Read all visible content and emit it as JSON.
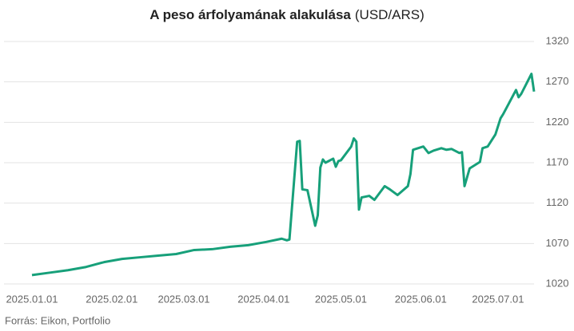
{
  "chart_data": {
    "type": "line",
    "title": "A peso árfolyamának alakulása",
    "title_unit": "(USD/ARS)",
    "source": "Forrás: Eikon, Portfolio",
    "x": [
      "2025.01.01",
      "2025.01.08",
      "2025.01.15",
      "2025.01.22",
      "2025.01.29",
      "2025.02.05",
      "2025.02.12",
      "2025.02.19",
      "2025.02.26",
      "2025.03.05",
      "2025.03.12",
      "2025.03.19",
      "2025.03.26",
      "2025.04.02",
      "2025.04.08",
      "2025.04.10",
      "2025.04.11",
      "2025.04.14",
      "2025.04.15",
      "2025.04.16",
      "2025.04.18",
      "2025.04.21",
      "2025.04.22",
      "2025.04.23",
      "2025.04.24",
      "2025.04.25",
      "2025.04.28",
      "2025.04.29",
      "2025.04.30",
      "2025.05.01",
      "2025.05.05",
      "2025.05.06",
      "2025.05.07",
      "2025.05.08",
      "2025.05.09",
      "2025.05.12",
      "2025.05.14",
      "2025.05.18",
      "2025.05.20",
      "2025.05.23",
      "2025.05.27",
      "2025.05.28",
      "2025.05.29",
      "2025.06.02",
      "2025.06.04",
      "2025.06.06",
      "2025.06.09",
      "2025.06.11",
      "2025.06.13",
      "2025.06.16",
      "2025.06.17",
      "2025.06.18",
      "2025.06.20",
      "2025.06.24",
      "2025.06.25",
      "2025.06.27",
      "2025.06.30",
      "2025.07.02",
      "2025.07.03",
      "2025.07.08",
      "2025.07.09",
      "2025.07.10",
      "2025.07.14",
      "2025.07.15"
    ],
    "series": [
      {
        "color": "#17a07a",
        "values": [
          1031,
          1034,
          1037,
          1041,
          1047,
          1051,
          1053,
          1055,
          1057,
          1062,
          1063,
          1066,
          1068,
          1072,
          1076,
          1074,
          1075,
          1196,
          1197,
          1137,
          1136,
          1092,
          1105,
          1164,
          1174,
          1170,
          1175,
          1165,
          1172,
          1173,
          1190,
          1200,
          1196,
          1112,
          1127,
          1129,
          1124,
          1141,
          1137,
          1130,
          1141,
          1156,
          1186,
          1190,
          1182,
          1185,
          1188,
          1186,
          1187,
          1182,
          1183,
          1141,
          1163,
          1171,
          1188,
          1190,
          1205,
          1225,
          1230,
          1260,
          1251,
          1255,
          1280,
          1258
        ]
      }
    ],
    "xlim": [
      "2025.01.01",
      "2025.07.15"
    ],
    "xticks": [
      "2025.01.01",
      "2025.02.01",
      "2025.03.01",
      "2025.04.01",
      "2025.05.01",
      "2025.06.01",
      "2025.07.01"
    ],
    "ylim": [
      1020,
      1320
    ],
    "yticks": [
      1020,
      1070,
      1120,
      1170,
      1220,
      1270,
      1320
    ],
    "grid": true
  }
}
